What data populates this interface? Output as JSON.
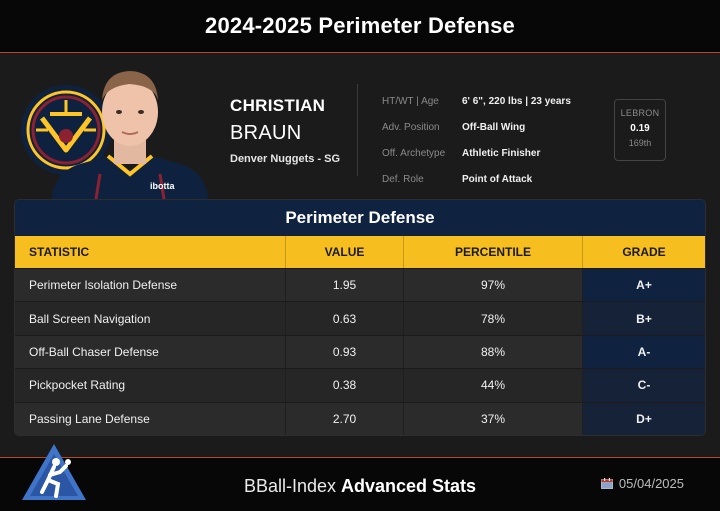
{
  "header": {
    "title": "2024-2025 Perimeter Defense"
  },
  "player": {
    "first_name": "CHRISTIAN",
    "last_name": "BRAUN",
    "team_position": "Denver Nuggets - SG",
    "jersey_sponsor": "ibotta",
    "info": [
      {
        "label": "HT/WT | Age",
        "value": "6' 6\", 220 lbs | 23 years"
      },
      {
        "label": "Adv. Position",
        "value": "Off-Ball Wing"
      },
      {
        "label": "Off. Archetype",
        "value": "Athletic Finisher"
      },
      {
        "label": "Def. Role",
        "value": "Point of Attack"
      }
    ],
    "lebron": {
      "label": "LEBRON",
      "value": "0.19",
      "rank": "169th"
    }
  },
  "table": {
    "title": "Perimeter Defense",
    "headers": {
      "statistic": "STATISTIC",
      "value": "VALUE",
      "percentile": "PERCENTILE",
      "grade": "GRADE"
    },
    "rows": [
      {
        "statistic": "Perimeter Isolation Defense",
        "value": "1.95",
        "percentile": "97%",
        "grade": "A+"
      },
      {
        "statistic": "Ball Screen Navigation",
        "value": "0.63",
        "percentile": "78%",
        "grade": "B+"
      },
      {
        "statistic": "Off-Ball Chaser Defense",
        "value": "0.93",
        "percentile": "88%",
        "grade": "A-"
      },
      {
        "statistic": "Pickpocket Rating",
        "value": "0.38",
        "percentile": "44%",
        "grade": "C-"
      },
      {
        "statistic": "Passing Lane Defense",
        "value": "2.70",
        "percentile": "37%",
        "grade": "D+"
      }
    ]
  },
  "footer": {
    "brand_part1": "BBall-Index",
    "brand_part2": "Advanced Stats",
    "date": "05/04/2025"
  },
  "colors": {
    "accent_gold": "#f6be1f",
    "navy": "#0f2240",
    "orange_rule": "#b5492a"
  },
  "icons": {
    "team_logo": "nuggets-logo-icon",
    "brand_logo": "bball-index-logo-icon",
    "date": "calendar-icon"
  }
}
